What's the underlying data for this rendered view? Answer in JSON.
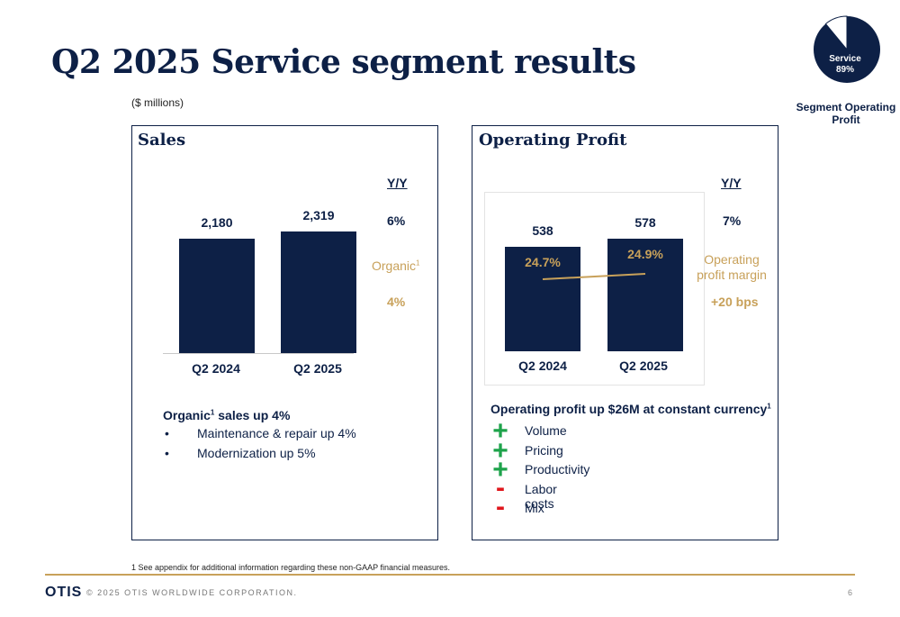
{
  "title": "Q2 2025 Service segment results",
  "units": "($ millions)",
  "pie": {
    "label": "Service",
    "percent": "89%",
    "share": 0.89,
    "caption_line1": "Segment Operating",
    "caption_line2": "Profit",
    "colors": {
      "main": "#0d2046",
      "rest": "#ffffff"
    }
  },
  "sales": {
    "title": "Sales",
    "yy_label": "Y/Y",
    "yy_value": "6%",
    "organic_label": "Organic",
    "organic_sup": "1",
    "organic_value": "4%",
    "bars": [
      {
        "label": "Q2 2024",
        "value": "2,180",
        "num": 2180
      },
      {
        "label": "Q2 2025",
        "value": "2,319",
        "num": 2319
      }
    ],
    "bullets_title": "Organic",
    "bullets_title_sup": "1",
    "bullets_title_rest": " sales up 4%",
    "bullet_marker": "•",
    "bullets": [
      "Maintenance & repair up 4%",
      "Modernization up 5%"
    ]
  },
  "op": {
    "title": "Operating Profit",
    "yy_label": "Y/Y",
    "yy_value": "7%",
    "margin_label_line1": "Operating",
    "margin_label_line2": "profit margin",
    "margin_change": "+20 bps",
    "bars": [
      {
        "label": "Q2 2024",
        "value": "538",
        "num": 538,
        "margin": "24.7%",
        "margin_num": 24.7
      },
      {
        "label": "Q2 2025",
        "value": "578",
        "num": 578,
        "margin": "24.9%",
        "margin_num": 24.9
      }
    ],
    "drivers_title": "Operating profit up $26M at constant currency",
    "drivers_title_sup": "1",
    "drivers": [
      {
        "sign": "+",
        "label": "Volume"
      },
      {
        "sign": "+",
        "label": "Pricing"
      },
      {
        "sign": "+",
        "label": "Productivity"
      },
      {
        "sign": "-",
        "label": "Labor costs"
      },
      {
        "sign": "-",
        "label": "Mix"
      }
    ]
  },
  "footnote": "1 See appendix for additional information regarding these non-GAAP financial measures.",
  "footer": {
    "logo": "OTIS",
    "copyright": "© 2025 OTIS WORLDWIDE CORPORATION.",
    "page": "6"
  },
  "colors": {
    "navy": "#0d2046",
    "gold": "#c8a15a",
    "green": "#1ea34b",
    "red": "#e0161c"
  }
}
